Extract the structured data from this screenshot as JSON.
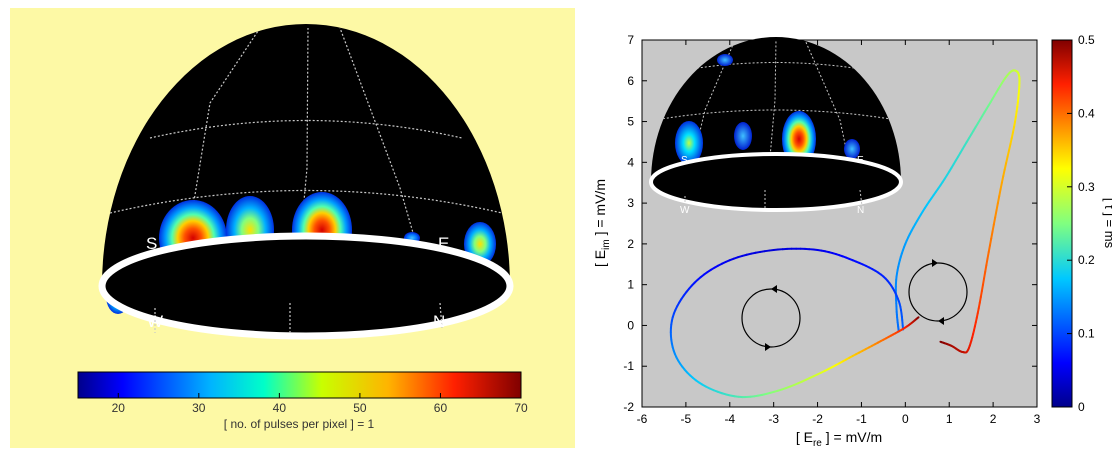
{
  "left_panel": {
    "background": "#fdf9a5",
    "dome_labels": [
      "S",
      "W",
      "E",
      "N"
    ],
    "colorbar": {
      "tick_labels": [
        "20",
        "30",
        "40",
        "50",
        "60",
        "70"
      ],
      "caption": "[ no. of pulses per pixel ] = 1"
    }
  },
  "right_panel": {
    "plot_background": "#c8c8c8",
    "inset_labels": [
      "S",
      "W",
      "E",
      "N"
    ],
    "colorbar": {
      "tick_labels": [
        "0",
        "0.1",
        "0.2",
        "0.3",
        "0.4",
        "0.5"
      ],
      "label": "[ t ] = ms"
    }
  },
  "chart_data": [
    {
      "type": "heatmap",
      "title": "",
      "projection": "hemispherical dome",
      "hotspots": [
        {
          "name": "S",
          "peak_value": 60
        },
        {
          "name": "middle-left",
          "peak_value": 45
        },
        {
          "name": "center",
          "peak_value": 65
        },
        {
          "name": "small-right",
          "peak_value": 18
        },
        {
          "name": "E",
          "peak_value": 30
        },
        {
          "name": "lower-left",
          "peak_value": 45
        }
      ],
      "colorbar_range": [
        15,
        70
      ],
      "colorbar_ticks": [
        20,
        30,
        40,
        50,
        60,
        70
      ],
      "colorbar_label": "[ no. of pulses per pixel ] = 1"
    },
    {
      "type": "line",
      "title": "",
      "xlabel": "[ E_re ] = mV/m",
      "ylabel": "[ E_im ] = mV/m",
      "xlim": [
        -6,
        3
      ],
      "ylim": [
        -2,
        7
      ],
      "xticks": [
        -6,
        -5,
        -4,
        -3,
        -2,
        -1,
        0,
        1,
        2,
        3
      ],
      "yticks": [
        -2,
        -1,
        0,
        1,
        2,
        3,
        4,
        5,
        6,
        7
      ],
      "color_scale": {
        "label": "[ t ] = ms",
        "range": [
          0,
          0.5
        ],
        "ticks": [
          0,
          0.1,
          0.2,
          0.3,
          0.4,
          0.5
        ]
      },
      "series": [
        {
          "points": [
            [
              -0.15,
              -0.15,
              0.12
            ],
            [
              -0.2,
              0.4,
              0.13
            ],
            [
              -0.2,
              1.2,
              0.14
            ],
            [
              0,
              2.0,
              0.15
            ],
            [
              0.4,
              2.8,
              0.17
            ],
            [
              0.9,
              3.6,
              0.19
            ],
            [
              1.4,
              4.5,
              0.21
            ],
            [
              1.9,
              5.4,
              0.24
            ],
            [
              2.3,
              6.1,
              0.27
            ],
            [
              2.5,
              6.25,
              0.29
            ],
            [
              2.6,
              6.0,
              0.31
            ],
            [
              2.5,
              5.0,
              0.34
            ],
            [
              2.2,
              3.5,
              0.37
            ],
            [
              1.9,
              1.8,
              0.4
            ],
            [
              1.65,
              0.3,
              0.43
            ],
            [
              1.45,
              -0.55,
              0.45
            ],
            [
              1.3,
              -0.65,
              0.47
            ],
            [
              1.05,
              -0.5,
              0.48
            ],
            [
              0.8,
              -0.4,
              0.5
            ]
          ]
        },
        {
          "points": [
            [
              -0.05,
              -0.1,
              0.12
            ],
            [
              -0.15,
              0.6,
              0.1
            ],
            [
              -0.5,
              1.2,
              0.08
            ],
            [
              -1.2,
              1.6,
              0.065
            ],
            [
              -2.0,
              1.85,
              0.05
            ],
            [
              -3.0,
              1.85,
              0.04
            ],
            [
              -4.0,
              1.6,
              0.05
            ],
            [
              -4.8,
              1.05,
              0.07
            ],
            [
              -5.3,
              0.2,
              0.1
            ],
            [
              -5.25,
              -0.7,
              0.14
            ],
            [
              -4.7,
              -1.4,
              0.18
            ],
            [
              -3.8,
              -1.75,
              0.22
            ],
            [
              -2.9,
              -1.6,
              0.26
            ],
            [
              -2.0,
              -1.2,
              0.3
            ],
            [
              -1.2,
              -0.75,
              0.35
            ],
            [
              -0.5,
              -0.35,
              0.4
            ],
            [
              0,
              -0.05,
              0.44
            ],
            [
              0.3,
              0.2,
              0.5
            ]
          ]
        }
      ],
      "loop_markers": [
        {
          "cx": -2.85,
          "cy": 0.15,
          "direction": "counterclockwise"
        },
        {
          "cx": 0.8,
          "cy": 0.9,
          "direction": "clockwise"
        }
      ],
      "inset": {
        "type": "heatmap",
        "projection": "hemispherical dome",
        "hotspots": [
          {
            "name": "S",
            "peak_value": 50
          },
          {
            "name": "middle-left",
            "peak_value": 35
          },
          {
            "name": "center",
            "peak_value": 65
          },
          {
            "name": "E",
            "peak_value": 35
          }
        ]
      }
    }
  ]
}
